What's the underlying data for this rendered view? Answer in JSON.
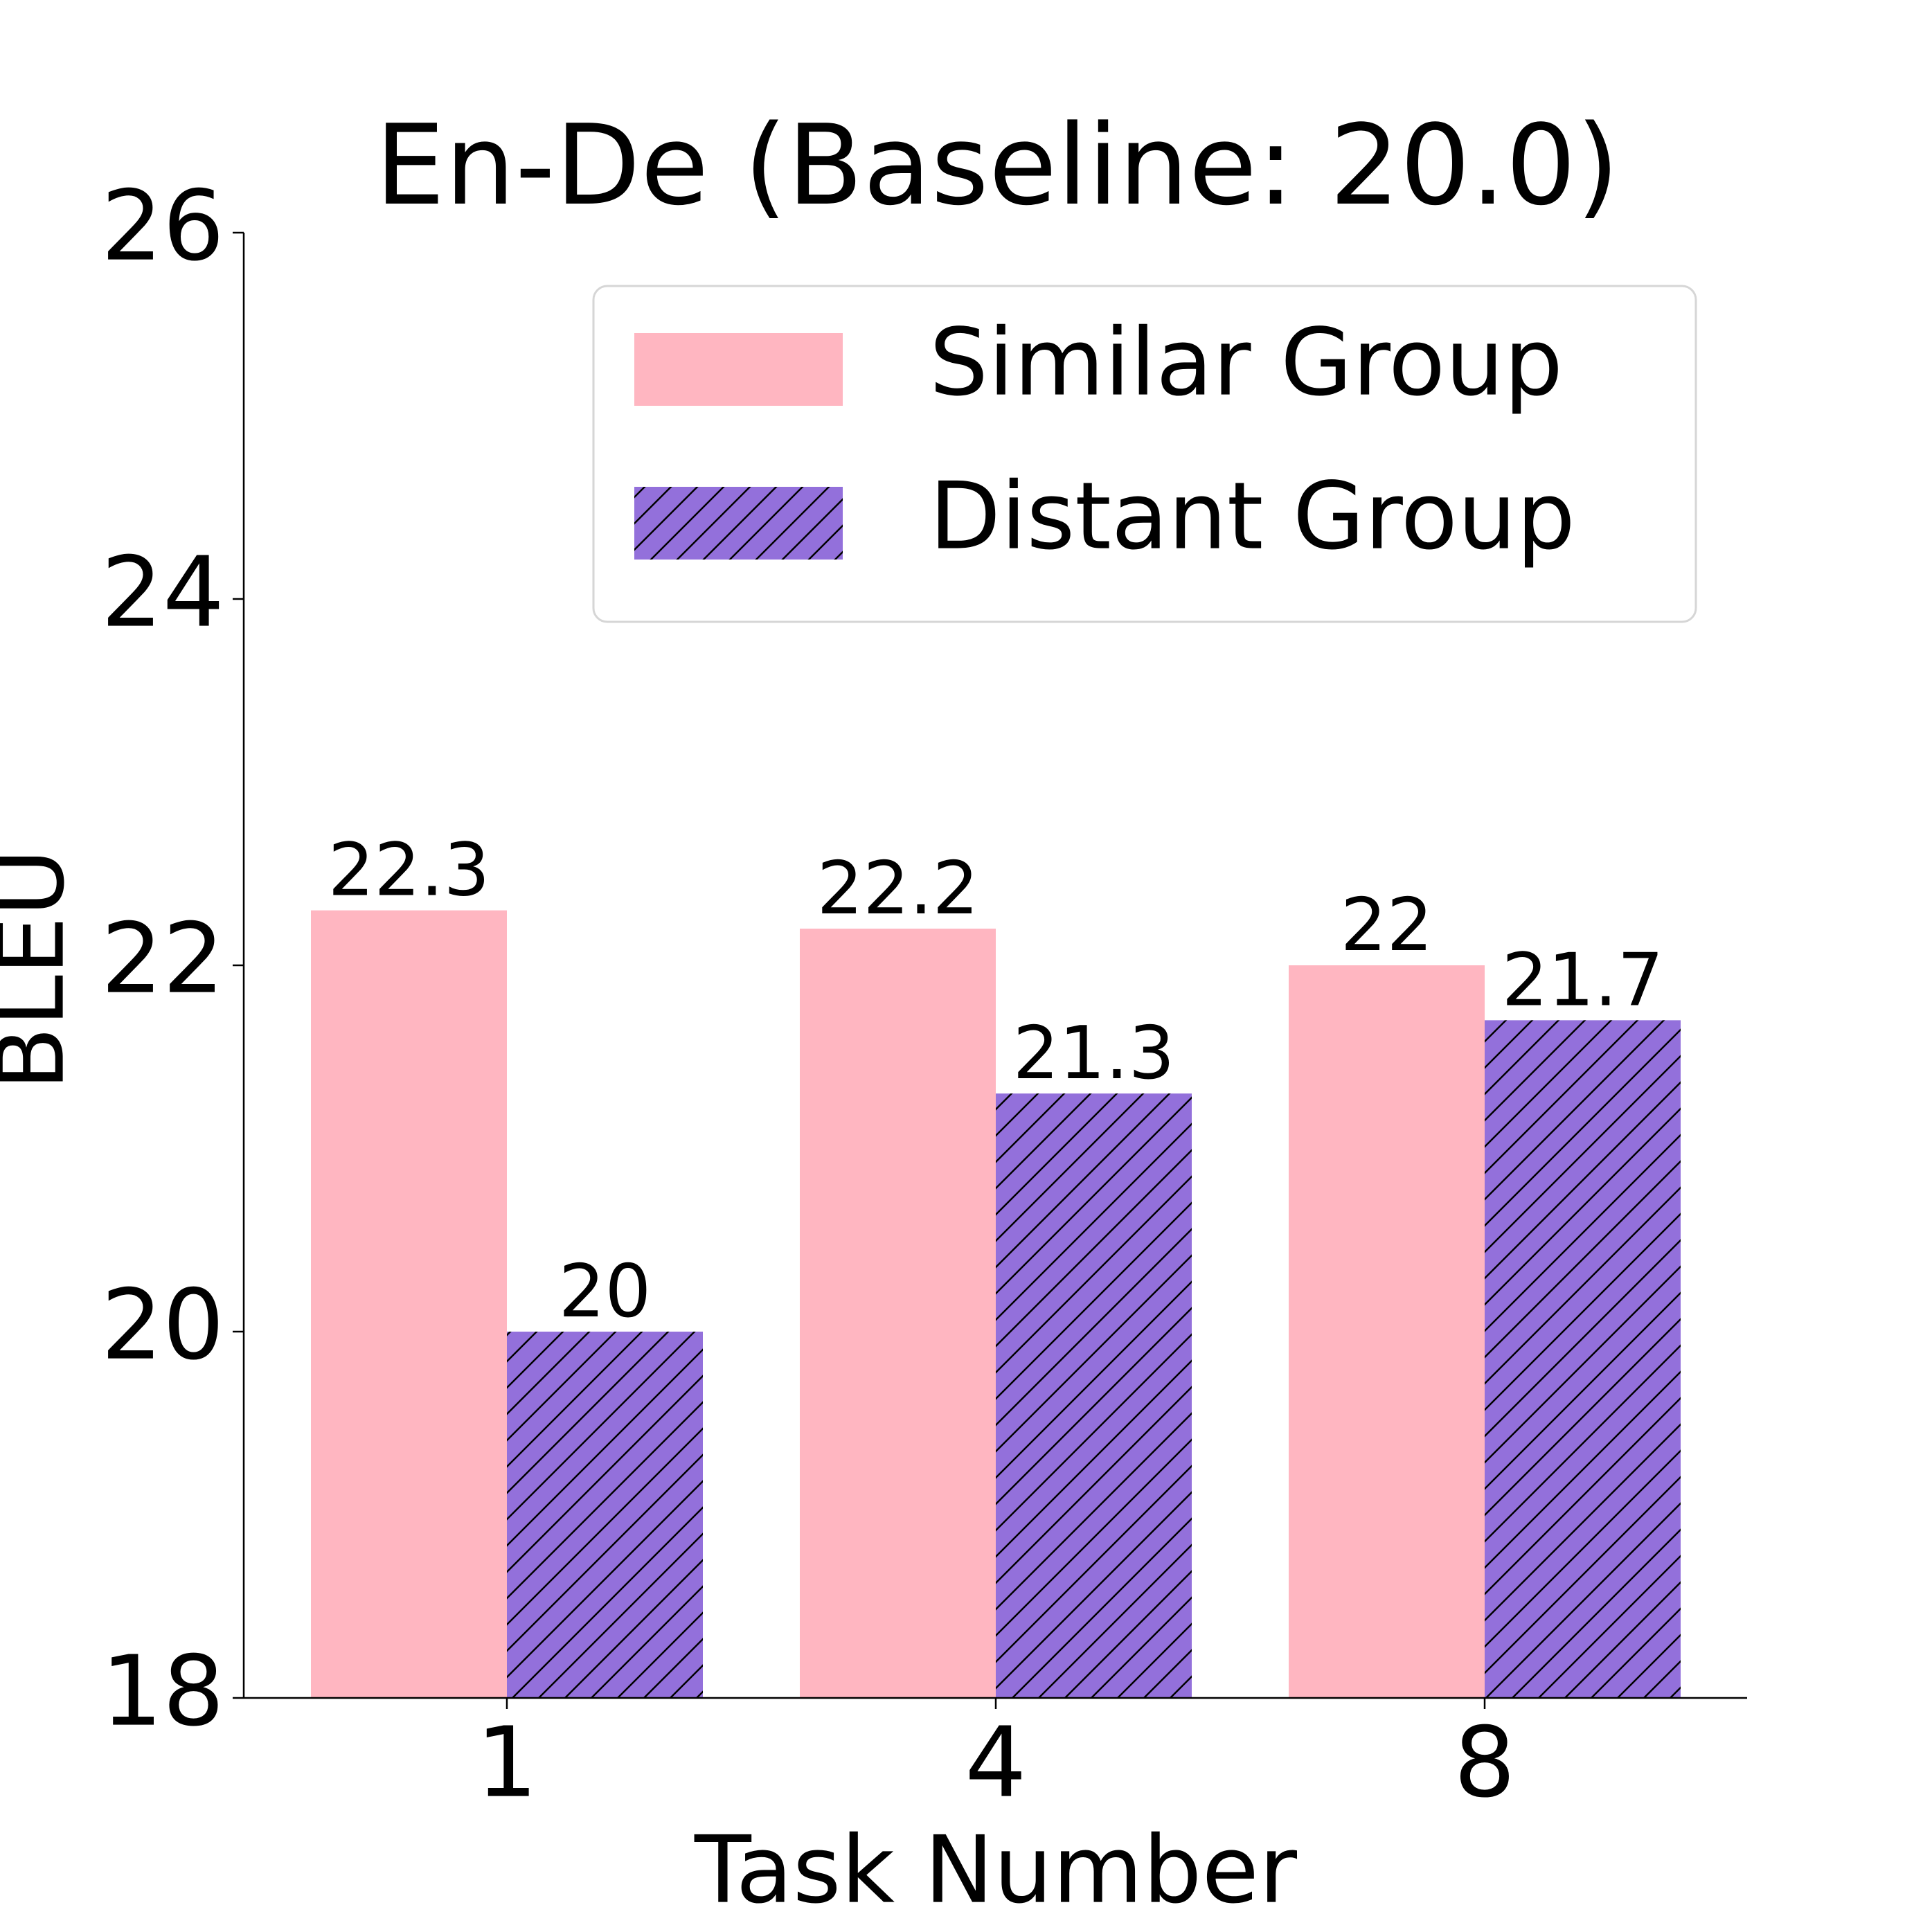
{
  "chart_data": {
    "type": "bar",
    "title": "En-De (Baseline: 20.0)",
    "x_label": "Task Number",
    "y_label": "BLEU",
    "categories": [
      "1",
      "4",
      "8"
    ],
    "series": [
      {
        "name": "Similar Group",
        "color": "#ffb6c1",
        "values": [
          22.3,
          22.2,
          22
        ]
      },
      {
        "name": "Distant Group",
        "color": "#9370db",
        "hatch": "//",
        "values": [
          20,
          21.3,
          21.7
        ]
      }
    ],
    "ylim": [
      18,
      26
    ],
    "yticks": [
      18,
      20,
      22,
      24,
      26
    ],
    "grid": false,
    "legend": "upper right"
  }
}
